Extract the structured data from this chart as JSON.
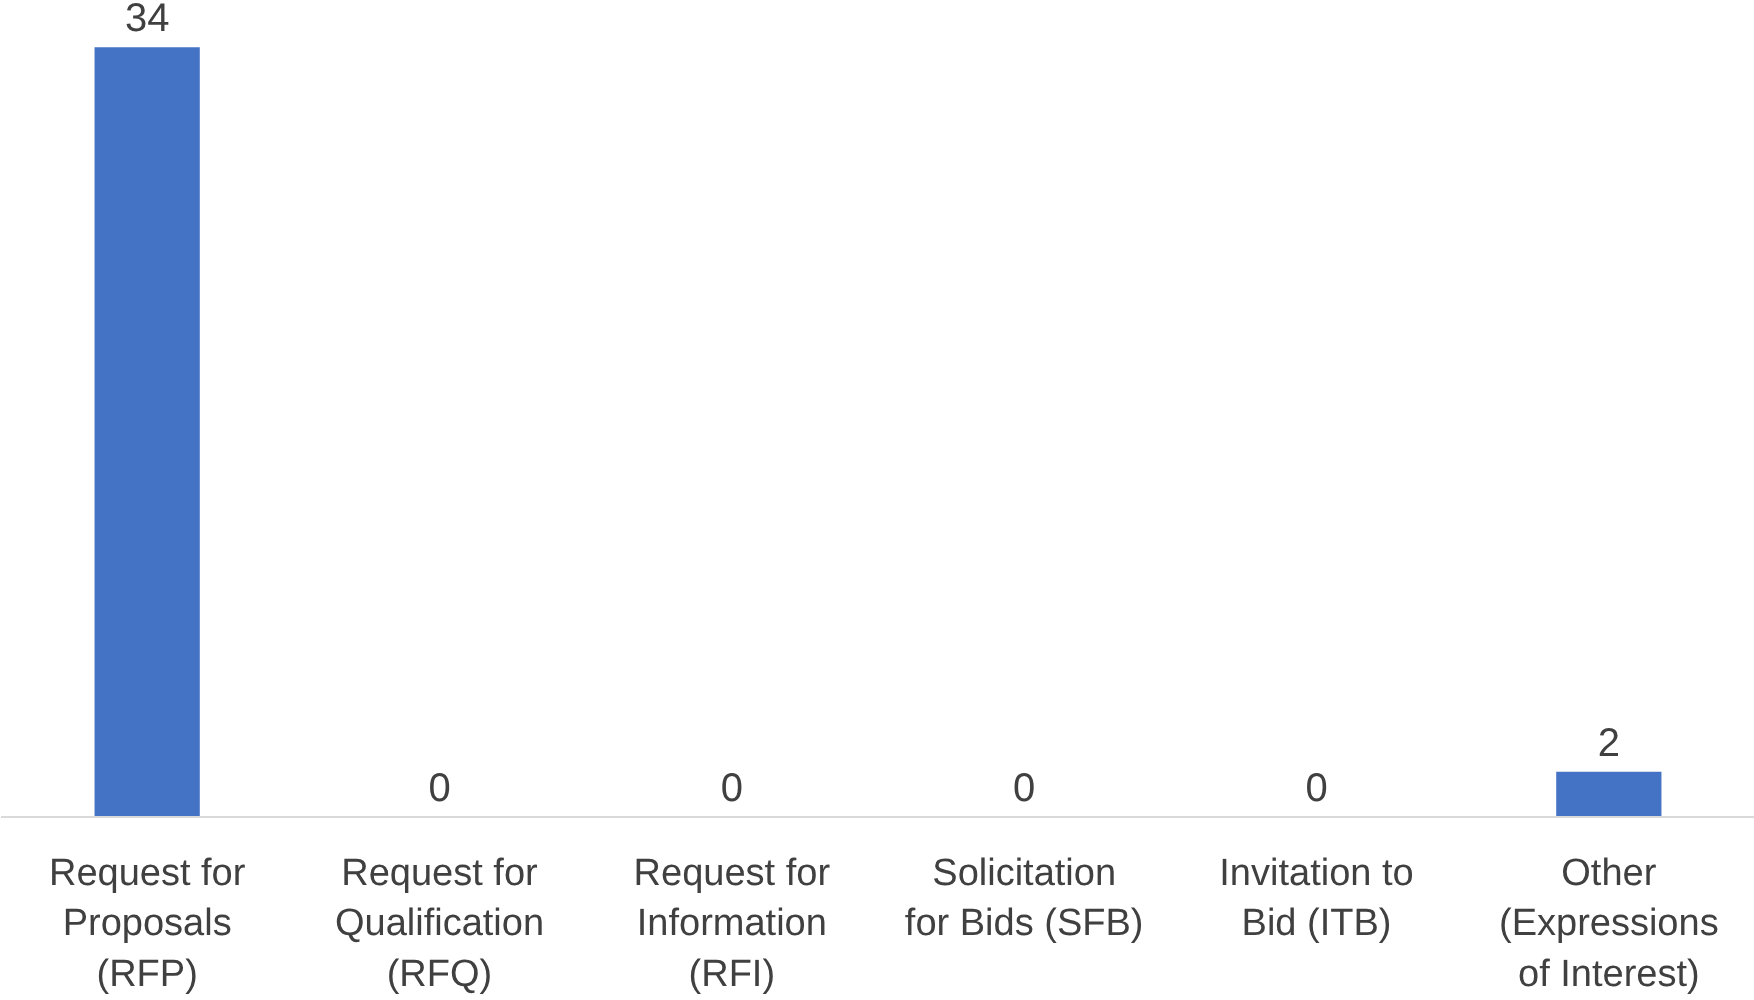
{
  "chart_data": {
    "type": "bar",
    "categories": [
      "Request for\nProposals\n(RFP)",
      "Request for\nQualification\n(RFQ)",
      "Request for\nInformation\n(RFI)",
      "Solicitation\nfor Bids (SFB)",
      "Invitation to\nBid (ITB)",
      "Other\n(Expressions\nof Interest)"
    ],
    "values": [
      34,
      0,
      0,
      0,
      0,
      2
    ],
    "color": "#4472c4",
    "data_labels": true
  }
}
